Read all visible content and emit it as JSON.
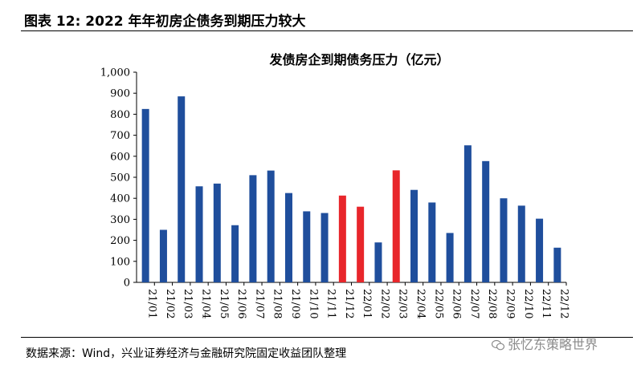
{
  "figure": {
    "title": "图表 12:  2022 年年初房企债务到期压力较大",
    "source": "数据来源：Wind，兴业证券经济与金融研究院固定收益团队整理",
    "watermark": "张忆东策略世界"
  },
  "chart_data": {
    "type": "bar",
    "title": "发债房企到期债务压力（亿元）",
    "xlabel": "",
    "ylabel": "",
    "ylim": [
      0,
      1000
    ],
    "yticks": [
      0,
      100,
      200,
      300,
      400,
      500,
      600,
      700,
      800,
      900,
      1000
    ],
    "ytick_labels": [
      "0",
      "100",
      "200",
      "300",
      "400",
      "500",
      "600",
      "700",
      "800",
      "900",
      "1,000"
    ],
    "grid": false,
    "legend": "none",
    "colors": {
      "default": "#1f4e9c",
      "highlight": "#e8262b"
    },
    "categories": [
      "21/01",
      "21/02",
      "21/03",
      "21/04",
      "21/05",
      "21/06",
      "21/07",
      "21/08",
      "21/09",
      "21/10",
      "21/11",
      "21/12",
      "22/01",
      "22/02",
      "22/03",
      "22/04",
      "22/05",
      "22/06",
      "22/07",
      "22/08",
      "22/09",
      "22/10",
      "22/11",
      "22/12"
    ],
    "values": [
      825,
      250,
      885,
      457,
      470,
      272,
      510,
      532,
      425,
      338,
      330,
      413,
      360,
      190,
      533,
      440,
      380,
      235,
      652,
      577,
      400,
      365,
      303,
      165
    ],
    "highlight_indices": [
      11,
      12,
      14
    ]
  }
}
